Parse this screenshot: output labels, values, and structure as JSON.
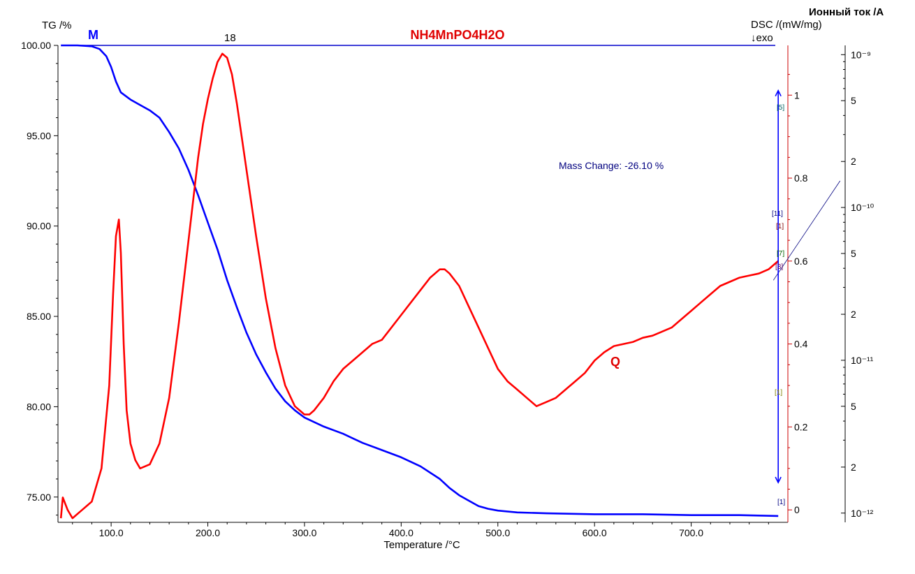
{
  "chart_data": {
    "type": "line",
    "title": "NH4MnPO4H2O",
    "xlabel": "Temperature /°C",
    "xlim": [
      45,
      800
    ],
    "x_ticks": [
      "100.0",
      "200.0",
      "300.0",
      "400.0",
      "500.0",
      "600.0",
      "700.0"
    ],
    "axes": {
      "tg": {
        "label": "TG /%",
        "ylim": [
          73.6,
          100.0
        ],
        "ticks": [
          "100.00",
          "95.00",
          "90.00",
          "85.00",
          "80.00",
          "75.00"
        ]
      },
      "dsc": {
        "label": "DSC /(mW/mg)",
        "sublabel": "↓exo",
        "ylim": [
          -0.03,
          1.12
        ],
        "ticks": [
          "1",
          "0.8",
          "0.6",
          "0.4",
          "0.2",
          "0"
        ]
      },
      "ion": {
        "label": "Ионный ток /A",
        "scale": "log",
        "ylim": [
          8.7e-13,
          1.15e-09
        ],
        "ticks": [
          "10⁻⁹",
          "5",
          "2",
          "10⁻¹⁰",
          "5",
          "2",
          "10⁻¹¹",
          "5",
          "2",
          "10⁻¹²"
        ]
      }
    },
    "series": [
      {
        "name": "M",
        "axis": "tg",
        "color": "#0000ff",
        "x": [
          48,
          65,
          80,
          88,
          95,
          100,
          105,
          110,
          120,
          130,
          140,
          150,
          160,
          170,
          180,
          190,
          200,
          210,
          220,
          230,
          240,
          250,
          260,
          270,
          280,
          290,
          300,
          320,
          340,
          360,
          380,
          400,
          420,
          440,
          450,
          460,
          470,
          480,
          490,
          500,
          520,
          550,
          600,
          650,
          700,
          750,
          790
        ],
        "y": [
          100.0,
          100.0,
          99.95,
          99.8,
          99.4,
          98.8,
          98.0,
          97.4,
          97.0,
          96.7,
          96.4,
          96.0,
          95.2,
          94.3,
          93.1,
          91.7,
          90.2,
          88.7,
          87.0,
          85.5,
          84.1,
          82.9,
          81.9,
          81.0,
          80.3,
          79.8,
          79.4,
          78.9,
          78.5,
          78.0,
          77.6,
          77.2,
          76.7,
          76.0,
          75.5,
          75.1,
          74.8,
          74.5,
          74.35,
          74.25,
          74.15,
          74.1,
          74.05,
          74.05,
          74.0,
          74.0,
          73.95
        ]
      },
      {
        "name": "Q",
        "axis": "dsc",
        "color": "#ff0000",
        "x": [
          48,
          50,
          55,
          60,
          70,
          80,
          90,
          98,
          102,
          105,
          108,
          110,
          113,
          116,
          120,
          125,
          130,
          140,
          150,
          160,
          170,
          180,
          190,
          195,
          200,
          205,
          210,
          215,
          220,
          225,
          230,
          240,
          250,
          260,
          270,
          280,
          290,
          300,
          305,
          310,
          320,
          330,
          340,
          350,
          360,
          370,
          380,
          390,
          400,
          410,
          420,
          430,
          440,
          445,
          450,
          460,
          470,
          480,
          490,
          500,
          510,
          520,
          530,
          540,
          550,
          560,
          570,
          580,
          590,
          600,
          610,
          620,
          630,
          640,
          650,
          660,
          670,
          680,
          690,
          700,
          710,
          720,
          730,
          740,
          750,
          760,
          770,
          780,
          790
        ],
        "y": [
          -0.02,
          0.03,
          0.0,
          -0.02,
          0.0,
          0.02,
          0.1,
          0.3,
          0.52,
          0.66,
          0.7,
          0.62,
          0.4,
          0.24,
          0.16,
          0.12,
          0.1,
          0.11,
          0.16,
          0.27,
          0.45,
          0.65,
          0.85,
          0.93,
          0.99,
          1.04,
          1.08,
          1.1,
          1.09,
          1.05,
          0.98,
          0.82,
          0.66,
          0.51,
          0.39,
          0.3,
          0.25,
          0.23,
          0.23,
          0.24,
          0.27,
          0.31,
          0.34,
          0.36,
          0.38,
          0.4,
          0.41,
          0.44,
          0.47,
          0.5,
          0.53,
          0.56,
          0.58,
          0.58,
          0.57,
          0.54,
          0.49,
          0.44,
          0.39,
          0.34,
          0.31,
          0.29,
          0.27,
          0.25,
          0.26,
          0.27,
          0.29,
          0.31,
          0.33,
          0.36,
          0.38,
          0.395,
          0.4,
          0.405,
          0.415,
          0.42,
          0.43,
          0.44,
          0.46,
          0.48,
          0.5,
          0.52,
          0.54,
          0.55,
          0.56,
          0.565,
          0.57,
          0.58,
          0.6
        ]
      }
    ],
    "annotations": {
      "tg_series_label": "M",
      "dsc_series_label": "Q",
      "peak_label": "18",
      "mass_change": "Mass Change: -26.10 %",
      "mass_change_x": 565,
      "mass_change_y": 92.5,
      "mass_change_target_x": 785,
      "mass_change_target_y": 87.0,
      "markers": [
        "[5]",
        "[11]",
        "[1]",
        "[7]",
        "[3]",
        "[1]",
        "[1]"
      ]
    },
    "grid": false,
    "legend": "none"
  }
}
